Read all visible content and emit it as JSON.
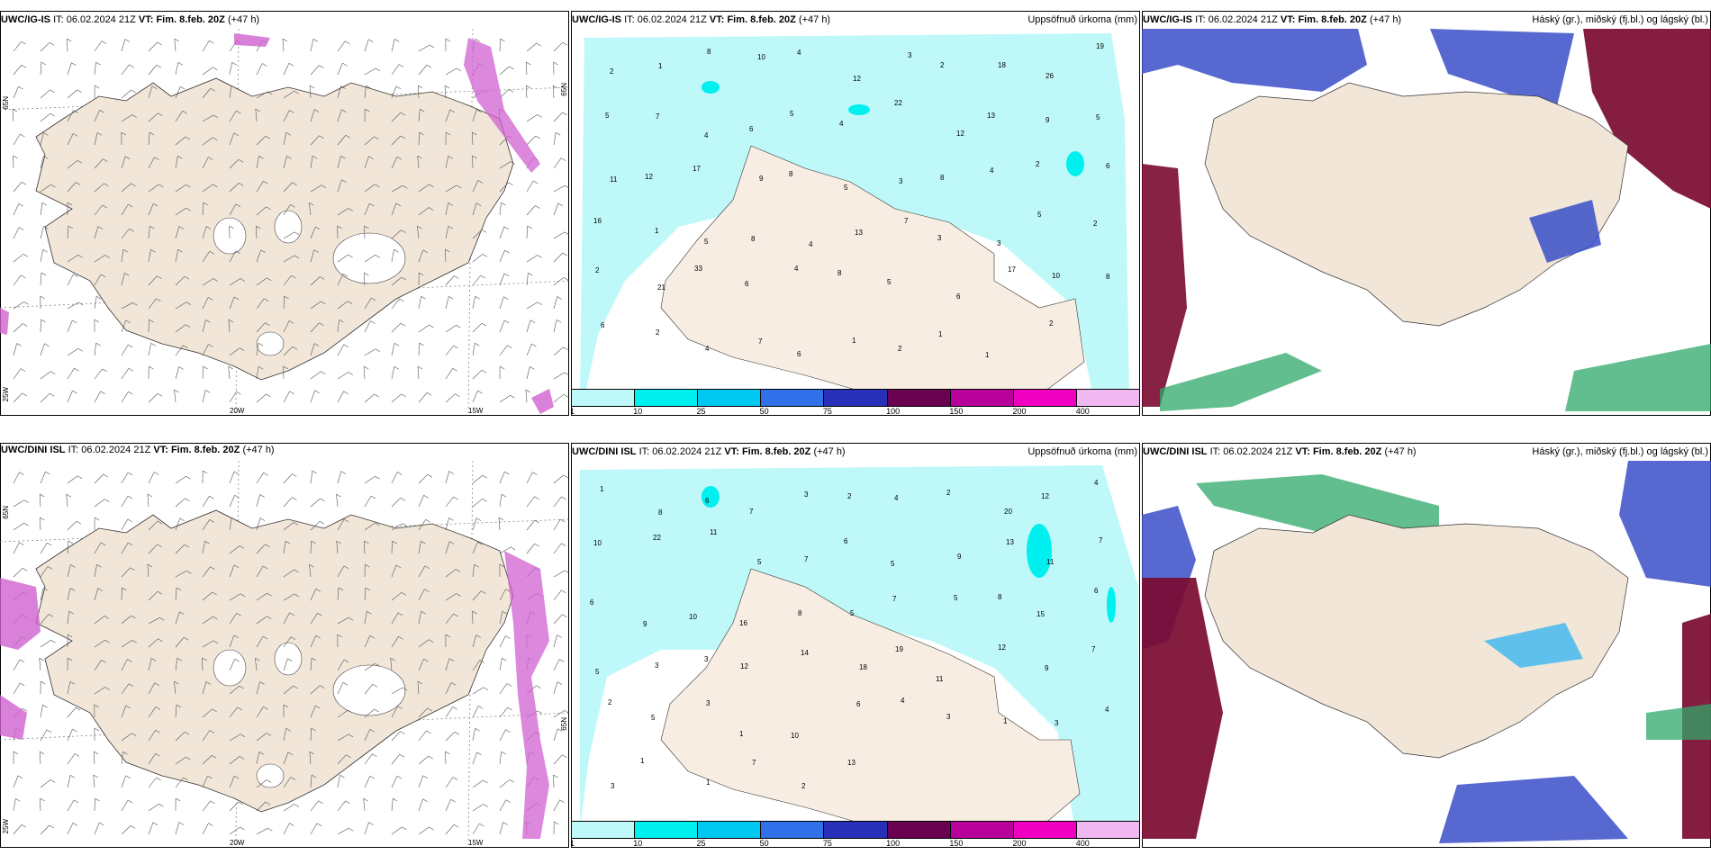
{
  "panels": [
    {
      "id": "p1",
      "header_model": "UWC/IG-IS",
      "header_it_label": "IT:",
      "header_it": "06.02.2024 21Z",
      "header_vt_label": "VT:",
      "header_vt": "Fim. 8.feb. 20Z",
      "header_lead": "(+47 h)",
      "header_right": "",
      "axis_labels": [
        "65N",
        "65N",
        "20W",
        "15W",
        "25W"
      ]
    },
    {
      "id": "p2",
      "header_model": "UWC/IG-IS",
      "header_it_label": "IT:",
      "header_it": "06.02.2024 21Z",
      "header_vt_label": "VT:",
      "header_vt": "Fim. 8.feb. 20Z",
      "header_lead": "(+47 h)",
      "header_right": "Uppsöfnuð úrkoma (mm)",
      "precip_values": [
        "2",
        "1",
        "8",
        "10",
        "4",
        "12",
        "3",
        "2",
        "18",
        "26",
        "19",
        "5",
        "7",
        "4",
        "6",
        "5",
        "4",
        "22",
        "12",
        "13",
        "9",
        "5",
        "11",
        "12",
        "17",
        "9",
        "8",
        "5",
        "3",
        "8",
        "4",
        "2",
        "6",
        "16",
        "1",
        "5",
        "8",
        "4",
        "13",
        "7",
        "3",
        "3",
        "5",
        "2",
        "2",
        "21",
        "33",
        "6",
        "4",
        "8",
        "5",
        "6",
        "17",
        "10",
        "8",
        "6",
        "2",
        "4",
        "7",
        "6",
        "1",
        "2",
        "1",
        "1",
        "2"
      ]
    },
    {
      "id": "p3",
      "header_model": "UWC/IG-IS",
      "header_it_label": "IT:",
      "header_it": "06.02.2024 21Z",
      "header_vt_label": "VT:",
      "header_vt": "Fim. 8.feb. 20Z",
      "header_lead": "(+47 h)",
      "header_right": "Háský (gr.), miðský (fj.bl.) og lágský (bl.)"
    },
    {
      "id": "p4",
      "header_model": "UWC/DINI ISL",
      "header_it_label": "IT:",
      "header_it": "06.02.2024 21Z",
      "header_vt_label": "VT:",
      "header_vt": "Fim. 8.feb. 20Z",
      "header_lead": "(+47 h)",
      "header_right": "",
      "axis_labels": [
        "65N",
        "65N",
        "20W",
        "15W",
        "25W"
      ]
    },
    {
      "id": "p5",
      "header_model": "UWC/DINI ISL",
      "header_it_label": "IT:",
      "header_it": "06.02.2024 21Z",
      "header_vt_label": "VT:",
      "header_vt": "Fim. 8.feb. 20Z",
      "header_lead": "(+47 h)",
      "header_right": "Uppsöfnuð úrkoma (mm)",
      "precip_values": [
        "1",
        "8",
        "6",
        "7",
        "3",
        "2",
        "4",
        "2",
        "20",
        "12",
        "4",
        "10",
        "22",
        "11",
        "5",
        "7",
        "6",
        "5",
        "9",
        "13",
        "11",
        "7",
        "6",
        "9",
        "10",
        "16",
        "8",
        "5",
        "7",
        "5",
        "8",
        "15",
        "6",
        "5",
        "3",
        "3",
        "12",
        "14",
        "18",
        "19",
        "11",
        "12",
        "9",
        "7",
        "2",
        "5",
        "3",
        "1",
        "10",
        "6",
        "4",
        "3",
        "1",
        "3",
        "4",
        "3",
        "1",
        "1",
        "7",
        "2",
        "13"
      ]
    },
    {
      "id": "p6",
      "header_model": "UWC/DINI ISL",
      "header_it_label": "IT:",
      "header_it": "06.02.2024 21Z",
      "header_vt_label": "VT:",
      "header_vt": "Fim. 8.feb. 20Z",
      "header_lead": "(+47 h)",
      "header_right": "Háský (gr.), miðský (fj.bl.) og lágský (bl.)"
    }
  ],
  "colorbar": {
    "colors": [
      "#bff8f8",
      "#00f0f0",
      "#00c8f0",
      "#3070e8",
      "#2830b8",
      "#6a0050",
      "#b8009a",
      "#f000c0",
      "#f0b8f0"
    ],
    "ticks": [
      "1",
      "10",
      "25",
      "50",
      "75",
      "100",
      "150",
      "200",
      "400"
    ]
  },
  "colors": {
    "land": "#f2e6d8",
    "sea": "#ffffff",
    "precip_light": "#bff8f8",
    "precip_mid": "#00f0f0",
    "cloud_high": "#2fa86a",
    "cloud_mid": "#3a4fc8",
    "cloud_low": "#7a0a30",
    "ice": "#d060d0"
  }
}
